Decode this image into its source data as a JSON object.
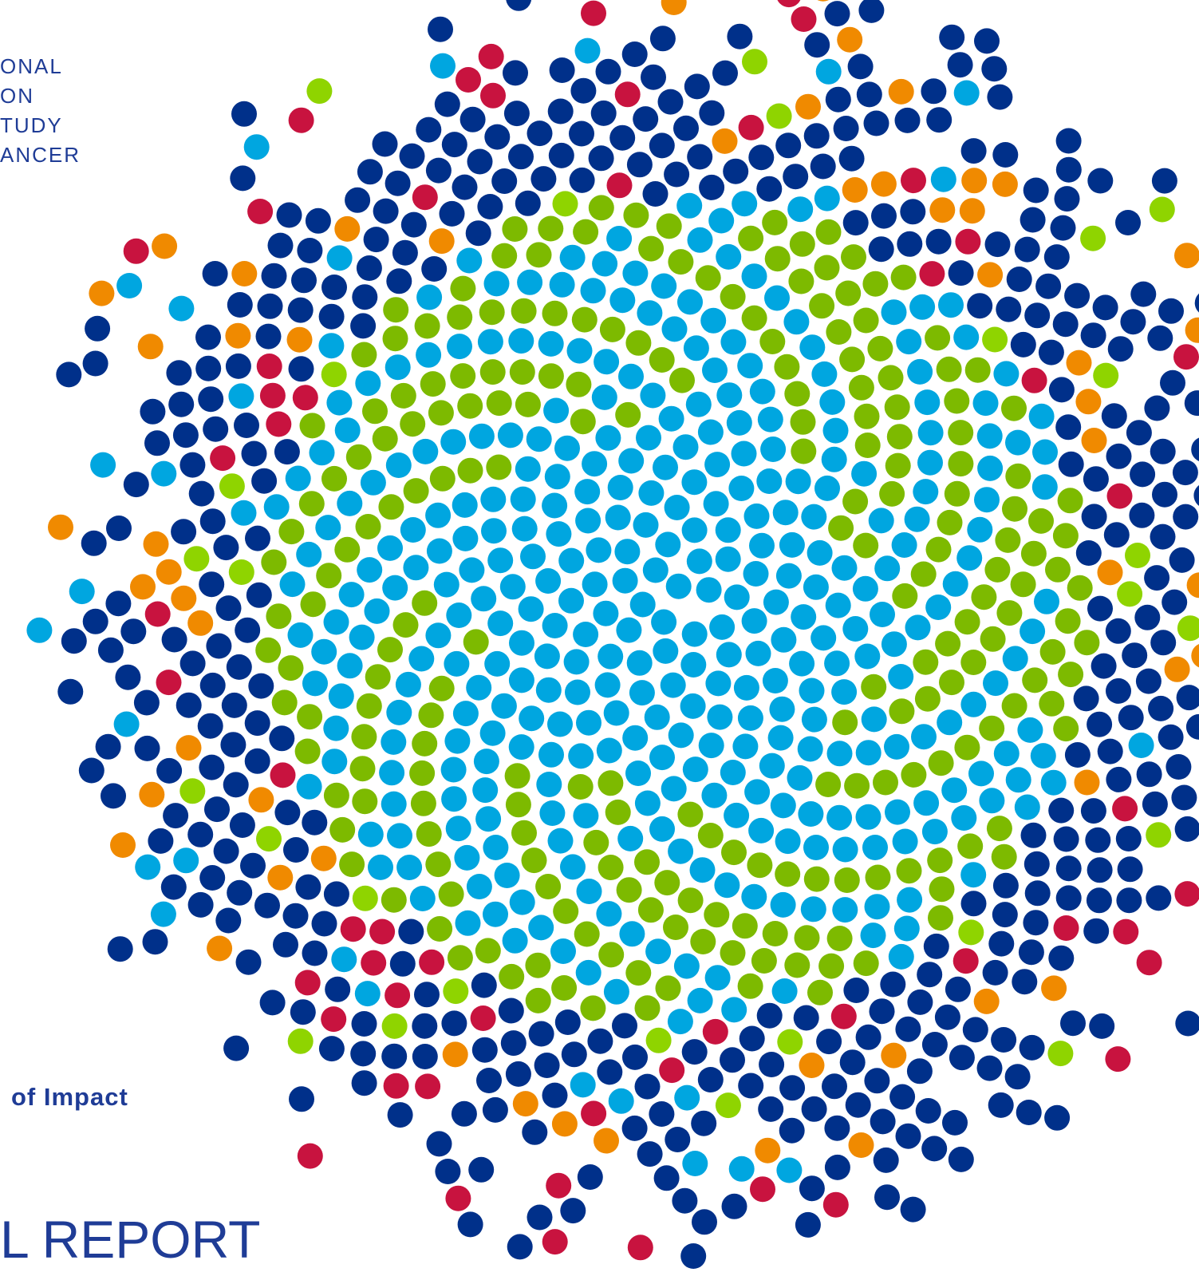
{
  "header": {
    "lines": [
      "ONAL",
      "ON",
      "TUDY",
      "ANCER"
    ]
  },
  "tagline": "of Impact",
  "title": "L REPORT"
}
